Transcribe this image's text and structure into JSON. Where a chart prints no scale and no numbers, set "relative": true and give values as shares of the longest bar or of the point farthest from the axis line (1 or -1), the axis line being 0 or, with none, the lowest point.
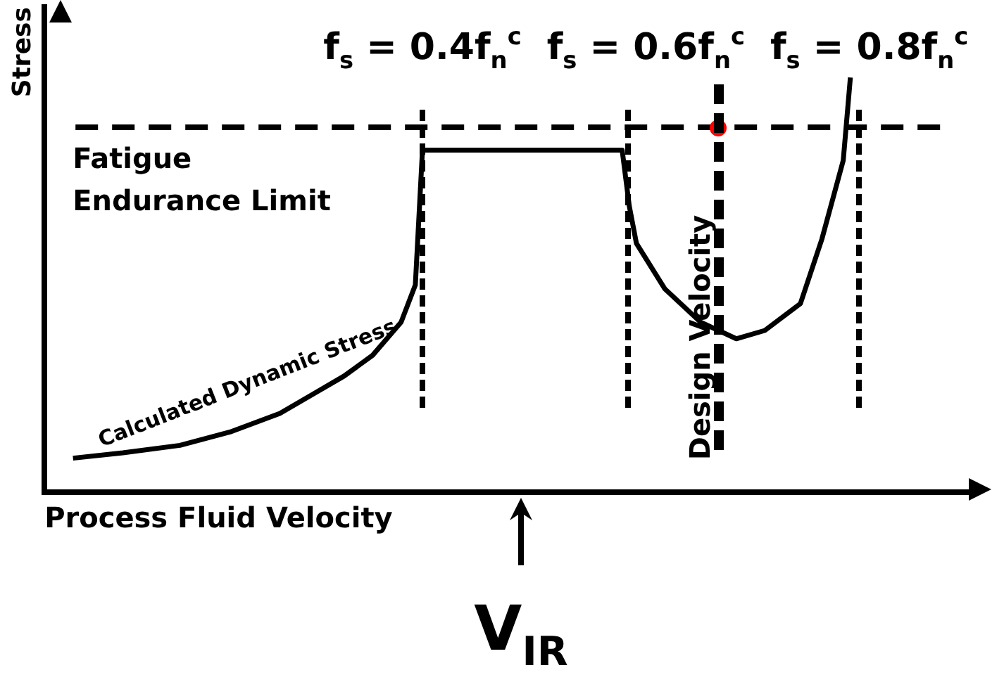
{
  "chart_data": {
    "type": "line",
    "relative": true,
    "xlabel": "Process Fluid Velocity",
    "ylabel": "Stress",
    "marker": "none",
    "legend": false,
    "grid": false,
    "categories": [
      null,
      null,
      null,
      null,
      null,
      null,
      null,
      null,
      null,
      null,
      null,
      null,
      null,
      null,
      null,
      null,
      null,
      null,
      null,
      null,
      null,
      null,
      null,
      null,
      null,
      null,
      null,
      null,
      null,
      null,
      null,
      null,
      null,
      null,
      null,
      null,
      null,
      null,
      null,
      null,
      null,
      null,
      null,
      null,
      null,
      null,
      null,
      null,
      null,
      null,
      null,
      null,
      null,
      null,
      null,
      null,
      null,
      null,
      null,
      null,
      null,
      null,
      null,
      null,
      null,
      null,
      null,
      null,
      null,
      null,
      null,
      null,
      null,
      null,
      null,
      null,
      null,
      null,
      null,
      null,
      null,
      null,
      null,
      null,
      null,
      null,
      null,
      null,
      null,
      null,
      null,
      null,
      null,
      null,
      null,
      null,
      null,
      null,
      null,
      null,
      null,
      null,
      null,
      null,
      null,
      null,
      null,
      null,
      null,
      null,
      null,
      null,
      null,
      null,
      null,
      null,
      null,
      null,
      null,
      null,
      null,
      null,
      null,
      null,
      null,
      null,
      null,
      null,
      null,
      null,
      null
    ],
    "series": [
      {
        "name": "Calculated Dynamic Stress",
        "color": "#000000",
        "values": [
          null,
          null,
          null,
          null,
          0.082,
          null,
          null,
          null,
          null,
          null,
          null,
          0.095,
          null,
          null,
          null,
          null,
          null,
          null,
          null,
          0.113,
          null,
          null,
          null,
          null,
          null,
          null,
          0.145,
          null,
          null,
          null,
          null,
          null,
          null,
          0.19,
          null,
          null,
          null,
          null,
          0.24,
          null,
          null,
          null,
          0.28,
          null,
          null,
          null,
          0.33,
          null,
          null,
          null,
          0.41,
          null,
          0.5,
          0.825,
          null,
          null,
          null,
          null,
          null,
          null,
          null,
          null,
          null,
          null,
          null,
          null,
          null,
          null,
          null,
          null,
          null,
          null,
          null,
          null,
          null,
          null,
          null,
          null,
          null,
          null,
          null,
          0.825,
          0.69,
          0.6,
          null,
          null,
          null,
          0.49,
          null,
          null,
          null,
          null,
          0.41,
          null,
          null,
          null,
          null,
          0.37,
          null,
          null,
          null,
          0.39,
          null,
          null,
          null,
          null,
          0.455,
          null,
          null,
          0.61,
          null,
          null,
          0.8,
          1.0,
          null,
          null,
          null,
          null,
          null,
          null,
          null,
          null,
          null,
          null,
          null,
          null,
          null,
          null,
          null,
          null,
          null
        ]
      }
    ],
    "ref_lines": [
      {
        "axis": "y",
        "value": 0.88,
        "label": "Fatigue Endurance Limit",
        "color": "#000000",
        "line_style": "dashed"
      }
    ],
    "annotations": [
      "f$_{s}$ = 0.4f$_{n}$$^{c}$",
      "f$_{s}$ = 0.6f$_{n}$$^{c}$",
      "Design Velocity",
      "f$_{s}$ = 0.8f$_{n}$$^{c}$",
      "V$_{IR}$"
    ]
  }
}
